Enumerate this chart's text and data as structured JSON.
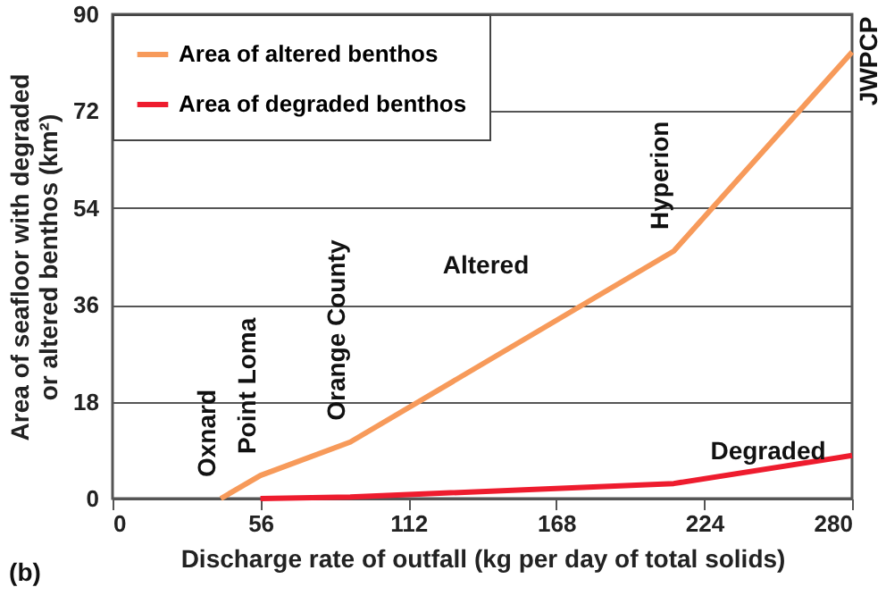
{
  "chart_data": {
    "type": "line",
    "xlabel": "Discharge rate of outfall (kg per day of total solids)",
    "ylabel": "Area of seafloor with degraded or altered benthos (km²)",
    "series": [
      {
        "name": "Area of altered benthos",
        "color": "#f79a5a",
        "x": [
          41,
          56,
          90,
          212.5,
          280
        ],
        "values": [
          0,
          4.3,
          10.5,
          46,
          83
        ]
      },
      {
        "name": "Area of degraded benthos",
        "color": "#ee1c2e",
        "x": [
          56,
          90,
          212.5,
          280
        ],
        "values": [
          0,
          0.3,
          2.8,
          8
        ]
      }
    ],
    "xlim": [
      0,
      280
    ],
    "xticks": [
      0,
      56,
      112,
      168,
      224,
      280
    ],
    "ylim": [
      0,
      90
    ],
    "yticks": [
      0,
      18,
      36,
      54,
      72,
      90
    ],
    "grid": "y",
    "legend": "top left",
    "marker": "none",
    "annotations": [
      {
        "text": "Oxnard",
        "x": 41,
        "y": 0
      },
      {
        "text": "Point Loma",
        "x": 56,
        "y": 4.3
      },
      {
        "text": "Orange County",
        "x": 90,
        "y": 10.5
      },
      {
        "text": "Hyperion",
        "x": 212.5,
        "y": 46
      },
      {
        "text": "JWPCP",
        "x": 280,
        "y": 83
      },
      "Altered",
      "Degraded",
      "(b)"
    ]
  }
}
